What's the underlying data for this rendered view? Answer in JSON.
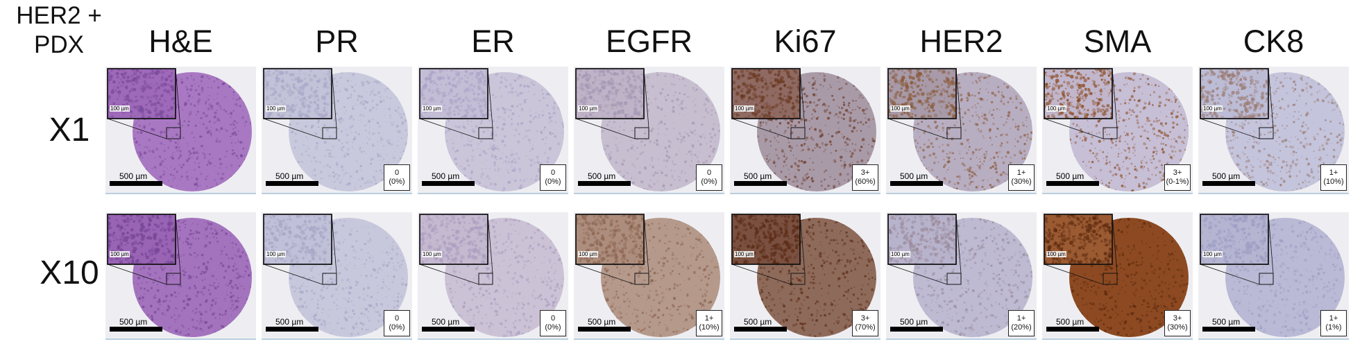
{
  "corner_label": [
    "HER2 +",
    "PDX"
  ],
  "columns": [
    "H&E",
    "PR",
    "ER",
    "EGFR",
    "Ki67",
    "HER2",
    "SMA",
    "CK8"
  ],
  "rows": [
    {
      "label": "X1",
      "panels": [
        {
          "stain": "H&E",
          "score": [
            "",
            ""
          ],
          "tissue_color": "#a978c2",
          "speckle_color": "#7a4a9c",
          "inset_color": "#9e69b8"
        },
        {
          "stain": "PR",
          "score": [
            "0",
            "(0%)"
          ],
          "tissue_color": "#c9c9dd",
          "speckle_color": "#a8a8c8",
          "inset_color": "#c2c2d8"
        },
        {
          "stain": "ER",
          "score": [
            "0",
            "(0%)"
          ],
          "tissue_color": "#cbc5da",
          "speckle_color": "#a9a1c4",
          "inset_color": "#c4bdd6"
        },
        {
          "stain": "EGFR",
          "score": [
            "0",
            "(0%)"
          ],
          "tissue_color": "#c7bfd0",
          "speckle_color": "#a496b3",
          "inset_color": "#bfb3c7"
        },
        {
          "stain": "Ki67",
          "score": [
            "3+",
            "(60%)"
          ],
          "tissue_color": "#a99aa8",
          "speckle_color": "#6b3a22",
          "inset_color": "#8f6a63"
        },
        {
          "stain": "HER2",
          "score": [
            "1+",
            "(30%)"
          ],
          "tissue_color": "#b8aec2",
          "speckle_color": "#8a5a3a",
          "inset_color": "#a89aa8"
        },
        {
          "stain": "SMA",
          "score": [
            "3+",
            "(0-1%)"
          ],
          "tissue_color": "#c6bfd6",
          "speckle_color": "#8b4a1f",
          "inset_color": "#c1b6cc"
        },
        {
          "stain": "CK8",
          "score": [
            "1+",
            "(10%)"
          ],
          "tissue_color": "#c4c4dc",
          "speckle_color": "#9a7a70",
          "inset_color": "#bcbcd6"
        }
      ]
    },
    {
      "label": "X10",
      "panels": [
        {
          "stain": "H&E",
          "score": [
            "",
            ""
          ],
          "tissue_color": "#a473be",
          "speckle_color": "#744494",
          "inset_color": "#9a64b5"
        },
        {
          "stain": "PR",
          "score": [
            "0",
            "(0%)"
          ],
          "tissue_color": "#c8c8dd",
          "speckle_color": "#a6a6c6",
          "inset_color": "#c0c0d8"
        },
        {
          "stain": "ER",
          "score": [
            "0",
            "(0%)"
          ],
          "tissue_color": "#ccc2d6",
          "speckle_color": "#a99cbe",
          "inset_color": "#c5b9d0"
        },
        {
          "stain": "EGFR",
          "score": [
            "1+",
            "(10%)"
          ],
          "tissue_color": "#b59a8c",
          "speckle_color": "#8c6450",
          "inset_color": "#ad8e7e"
        },
        {
          "stain": "Ki67",
          "score": [
            "3+",
            "(70%)"
          ],
          "tissue_color": "#8e6a5a",
          "speckle_color": "#5a2a14",
          "inset_color": "#7a5040"
        },
        {
          "stain": "HER2",
          "score": [
            "1+",
            "(20%)"
          ],
          "tissue_color": "#bdbad2",
          "speckle_color": "#9a8a9a",
          "inset_color": "#b8b3cc"
        },
        {
          "stain": "SMA",
          "score": [
            "3+",
            "(30%)"
          ],
          "tissue_color": "#8d4a22",
          "speckle_color": "#5c2a0e",
          "inset_color": "#9a5a32"
        },
        {
          "stain": "CK8",
          "score": [
            "1+",
            "(1%)"
          ],
          "tissue_color": "#babad6",
          "speckle_color": "#9c9cc2",
          "inset_color": "#b5b5d2"
        }
      ]
    }
  ],
  "scale_bar_label": "500 µm",
  "inset_scale_label": "100 µm"
}
